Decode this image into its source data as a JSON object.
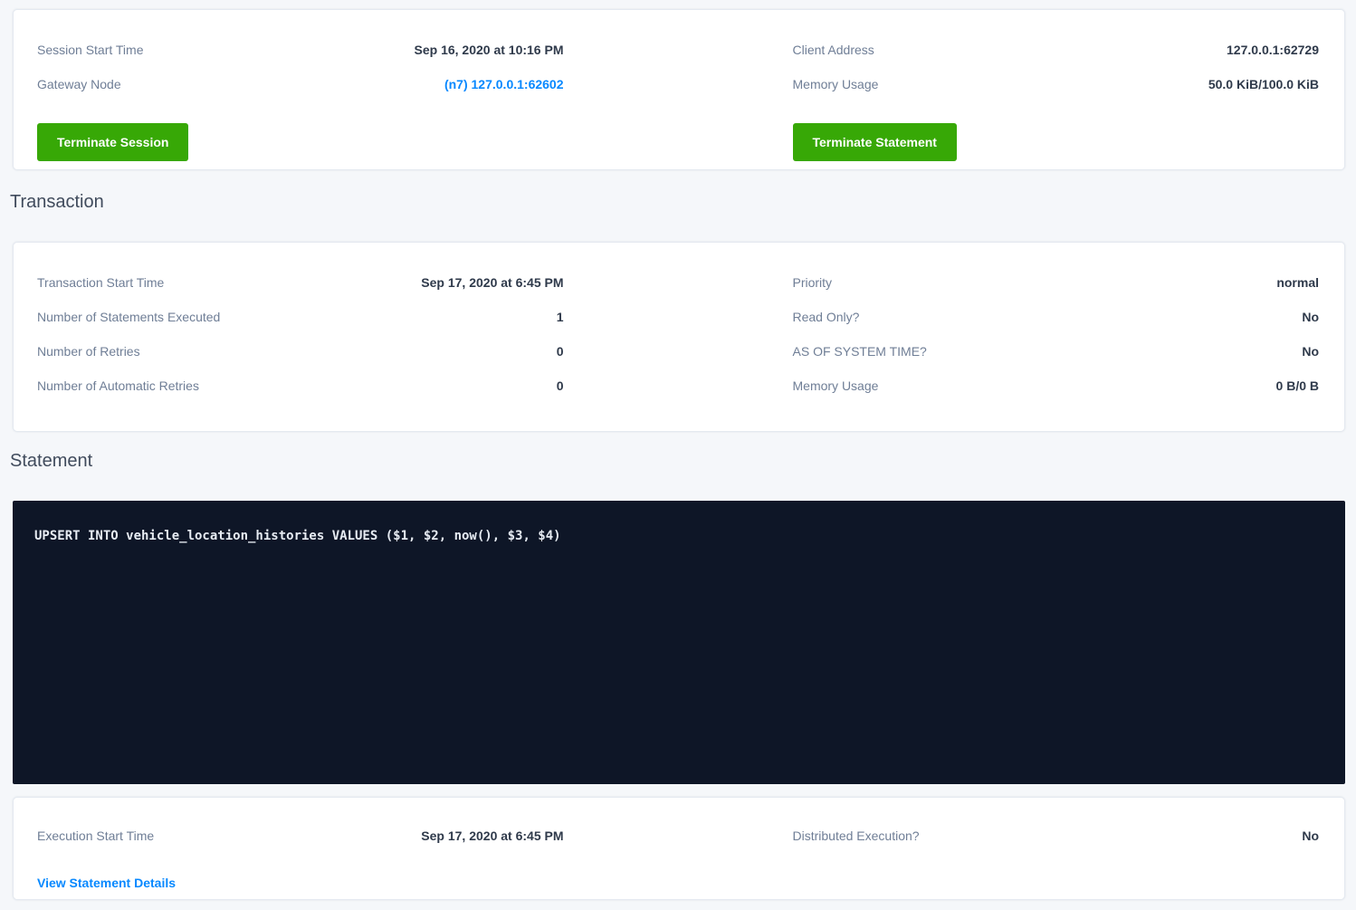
{
  "colors": {
    "accent_green": "#37a806",
    "link_blue": "#0788ff",
    "label_gray": "#6f7e96",
    "value_dark": "#2f3a4b",
    "code_background": "#0e1627",
    "page_background": "#f5f7fa"
  },
  "session": {
    "rows_left": [
      {
        "label": "Session Start Time",
        "value": "Sep 16, 2020 at 10:16 PM"
      },
      {
        "label": "Gateway Node",
        "value": "(n7) 127.0.0.1:62602"
      }
    ],
    "rows_right": [
      {
        "label": "Client Address",
        "value": "127.0.0.1:62729"
      },
      {
        "label": "Memory Usage",
        "value": "50.0 KiB/100.0 KiB"
      }
    ],
    "terminate_session_label": "Terminate Session",
    "terminate_statement_label": "Terminate Statement"
  },
  "transaction": {
    "title": "Transaction",
    "rows_left": [
      {
        "label": "Transaction Start Time",
        "value": "Sep 17, 2020 at 6:45 PM"
      },
      {
        "label": "Number of Statements Executed",
        "value": "1"
      },
      {
        "label": "Number of Retries",
        "value": "0"
      },
      {
        "label": "Number of Automatic Retries",
        "value": "0"
      }
    ],
    "rows_right": [
      {
        "label": "Priority",
        "value": "normal"
      },
      {
        "label": "Read Only?",
        "value": "No"
      },
      {
        "label": "AS OF SYSTEM TIME?",
        "value": "No"
      },
      {
        "label": "Memory Usage",
        "value": "0 B/0 B"
      }
    ]
  },
  "statement": {
    "title": "Statement",
    "sql": "UPSERT INTO vehicle_location_histories VALUES ($1, $2, now(), $3, $4)",
    "rows_left": [
      {
        "label": "Execution Start Time",
        "value": "Sep 17, 2020 at 6:45 PM"
      }
    ],
    "rows_right": [
      {
        "label": "Distributed Execution?",
        "value": "No"
      }
    ],
    "view_details_label": "View Statement Details"
  }
}
